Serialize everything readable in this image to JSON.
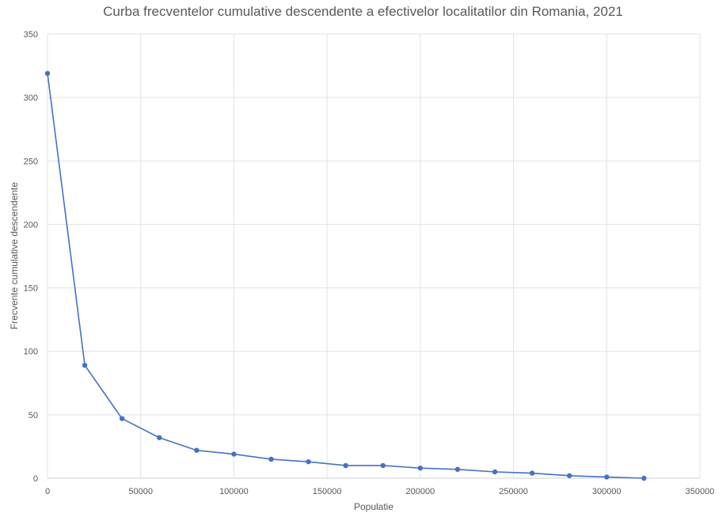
{
  "chart_data": {
    "type": "line",
    "title": "Curba frecventelor cumulative descendente a efectivelor localitatilor din Romania, 2021",
    "xlabel": "Populatie",
    "ylabel": "Frecvente cumulative descendente",
    "xlim": [
      0,
      350000
    ],
    "ylim": [
      0,
      350
    ],
    "xticks": [
      0,
      50000,
      100000,
      150000,
      200000,
      250000,
      300000,
      350000
    ],
    "yticks": [
      0,
      50,
      100,
      150,
      200,
      250,
      300,
      350
    ],
    "grid": true,
    "markers": true,
    "series": [
      {
        "color": "#4472C4",
        "x": [
          0,
          20000,
          40000,
          60000,
          80000,
          100000,
          120000,
          140000,
          160000,
          180000,
          200000,
          220000,
          240000,
          260000,
          280000,
          300000,
          320000
        ],
        "y": [
          319,
          89,
          47,
          32,
          22,
          19,
          15,
          13,
          10,
          10,
          8,
          7,
          5,
          4,
          2,
          1,
          0
        ]
      }
    ]
  }
}
